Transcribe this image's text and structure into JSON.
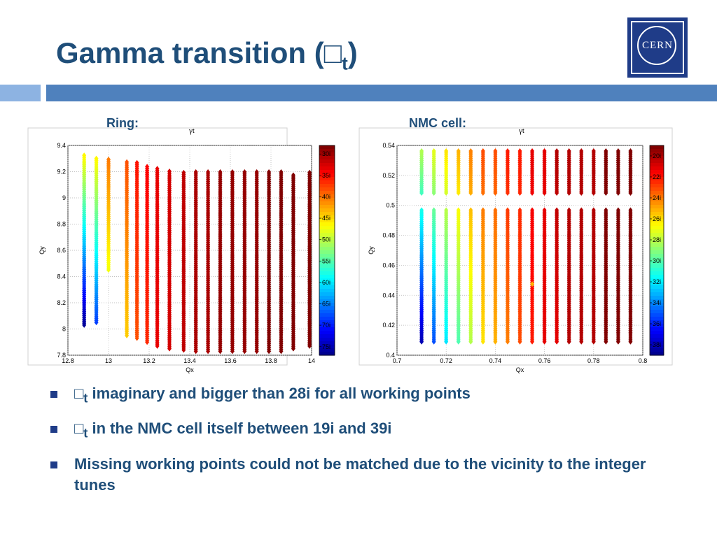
{
  "slide": {
    "title_main": "Gamma transition (",
    "title_symbol": "□",
    "title_sub": "t",
    "title_close": ")",
    "logo_text": "CERN"
  },
  "bullets": [
    {
      "symbol": "□",
      "sub": "t",
      "text": " imaginary and bigger than 28i for all working points"
    },
    {
      "symbol": "□",
      "sub": "t",
      "text": " in the NMC cell itself between 19i and 39i"
    },
    {
      "symbol": "",
      "sub": "",
      "text": "Missing working points could not be matched due to the vicinity to the integer tunes"
    }
  ],
  "chart_data": [
    {
      "type": "heatmap",
      "label": "Ring:",
      "title": "γt",
      "xlabel": "Qx",
      "ylabel": "Qy",
      "xlim": [
        12.8,
        14
      ],
      "ylim": [
        7.8,
        9.4
      ],
      "xticks": [
        12.8,
        13,
        13.2,
        13.4,
        13.6,
        13.8,
        14
      ],
      "xtick_labels": [
        "12.8",
        "13",
        "13.2",
        "13.4",
        "13.6",
        "13.8",
        "14"
      ],
      "yticks": [
        7.8,
        8,
        8.2,
        8.4,
        8.6,
        8.8,
        9,
        9.2,
        9.4
      ],
      "ytick_labels": [
        "7.8",
        "8",
        "8.2",
        "8.4",
        "8.6",
        "8.8",
        "9",
        "9.2",
        "9.4"
      ],
      "grid": true,
      "colorbar_ticks": [
        "30i",
        "35i",
        "40i",
        "45i",
        "50i",
        "55i",
        "60i",
        "65i",
        "70i",
        "75i"
      ],
      "colorbar_range": [
        28,
        77
      ],
      "colorbar_reversed": true,
      "columns": [
        {
          "x": 12.88,
          "ymin": 8.03,
          "ymax": 9.33,
          "v_bottom": 76,
          "v_top": 46
        },
        {
          "x": 12.94,
          "ymin": 8.05,
          "ymax": 9.31,
          "v_bottom": 68,
          "v_top": 46
        },
        {
          "x": 13.0,
          "ymin": 8.45,
          "ymax": 9.3,
          "v_bottom": 47,
          "v_top": 40
        },
        {
          "x": 13.09,
          "ymin": 7.95,
          "ymax": 9.28,
          "v_bottom": 44,
          "v_top": 38
        },
        {
          "x": 13.14,
          "ymin": 7.93,
          "ymax": 9.27,
          "v_bottom": 38,
          "v_top": 35
        },
        {
          "x": 13.19,
          "ymin": 7.9,
          "ymax": 9.25,
          "v_bottom": 36,
          "v_top": 34
        },
        {
          "x": 13.24,
          "ymin": 7.87,
          "ymax": 9.23,
          "v_bottom": 33,
          "v_top": 33
        },
        {
          "x": 13.3,
          "ymin": 7.85,
          "ymax": 9.21,
          "v_bottom": 32,
          "v_top": 32
        },
        {
          "x": 13.37,
          "ymin": 7.84,
          "ymax": 9.2,
          "v_bottom": 31,
          "v_top": 31
        },
        {
          "x": 13.43,
          "ymin": 7.83,
          "ymax": 9.2,
          "v_bottom": 30,
          "v_top": 30
        },
        {
          "x": 13.49,
          "ymin": 7.83,
          "ymax": 9.2,
          "v_bottom": 30,
          "v_top": 30
        },
        {
          "x": 13.55,
          "ymin": 7.83,
          "ymax": 9.2,
          "v_bottom": 29,
          "v_top": 29
        },
        {
          "x": 13.61,
          "ymin": 7.83,
          "ymax": 9.2,
          "v_bottom": 29,
          "v_top": 29
        },
        {
          "x": 13.67,
          "ymin": 7.83,
          "ymax": 9.2,
          "v_bottom": 29,
          "v_top": 29
        },
        {
          "x": 13.73,
          "ymin": 7.83,
          "ymax": 9.2,
          "v_bottom": 29,
          "v_top": 29
        },
        {
          "x": 13.79,
          "ymin": 7.83,
          "ymax": 9.2,
          "v_bottom": 28,
          "v_top": 28
        },
        {
          "x": 13.85,
          "ymin": 7.83,
          "ymax": 9.2,
          "v_bottom": 28,
          "v_top": 28
        },
        {
          "x": 13.91,
          "ymin": 7.85,
          "ymax": 9.18,
          "v_bottom": 28,
          "v_top": 28
        },
        {
          "x": 13.99,
          "ymin": 7.87,
          "ymax": 9.2,
          "v_bottom": 28,
          "v_top": 28
        }
      ]
    },
    {
      "type": "heatmap",
      "label": "NMC cell:",
      "title": "γt",
      "xlabel": "Qx",
      "ylabel": "Qy",
      "xlim": [
        0.7,
        0.8
      ],
      "ylim": [
        0.4,
        0.54
      ],
      "xticks": [
        0.7,
        0.72,
        0.74,
        0.76,
        0.78,
        0.8
      ],
      "xtick_labels": [
        "0.7",
        "0.72",
        "0.74",
        "0.76",
        "0.78",
        "0.8"
      ],
      "yticks": [
        0.4,
        0.42,
        0.44,
        0.46,
        0.48,
        0.5,
        0.52,
        0.54
      ],
      "ytick_labels": [
        "0.4",
        "0.42",
        "0.44",
        "0.46",
        "0.48",
        "0.5",
        "0.52",
        "0.54"
      ],
      "grid": true,
      "colorbar_ticks": [
        "20i",
        "22i",
        "24i",
        "26i",
        "28i",
        "30i",
        "32i",
        "34i",
        "36i",
        "38i"
      ],
      "colorbar_range": [
        19,
        39
      ],
      "colorbar_reversed": true,
      "gap": [
        0.497,
        0.508
      ],
      "columns": [
        {
          "x": 0.71,
          "ymin": 0.409,
          "ymax": 0.537,
          "v_bottom": 38,
          "v_top": 28
        },
        {
          "x": 0.715,
          "ymin": 0.409,
          "ymax": 0.537,
          "v_bottom": 35,
          "v_top": 27
        },
        {
          "x": 0.72,
          "ymin": 0.409,
          "ymax": 0.537,
          "v_bottom": 32,
          "v_top": 26
        },
        {
          "x": 0.725,
          "ymin": 0.409,
          "ymax": 0.537,
          "v_bottom": 30,
          "v_top": 25
        },
        {
          "x": 0.73,
          "ymin": 0.409,
          "ymax": 0.537,
          "v_bottom": 28,
          "v_top": 24
        },
        {
          "x": 0.735,
          "ymin": 0.409,
          "ymax": 0.537,
          "v_bottom": 26,
          "v_top": 23
        },
        {
          "x": 0.74,
          "ymin": 0.409,
          "ymax": 0.537,
          "v_bottom": 25,
          "v_top": 23
        },
        {
          "x": 0.745,
          "ymin": 0.409,
          "ymax": 0.537,
          "v_bottom": 24,
          "v_top": 22
        },
        {
          "x": 0.75,
          "ymin": 0.409,
          "ymax": 0.537,
          "v_bottom": 23,
          "v_top": 22
        },
        {
          "x": 0.755,
          "ymin": 0.409,
          "ymax": 0.537,
          "v_bottom": 22,
          "v_top": 21
        },
        {
          "x": 0.76,
          "ymin": 0.409,
          "ymax": 0.537,
          "v_bottom": 21,
          "v_top": 21
        },
        {
          "x": 0.765,
          "ymin": 0.409,
          "ymax": 0.537,
          "v_bottom": 21,
          "v_top": 20
        },
        {
          "x": 0.77,
          "ymin": 0.409,
          "ymax": 0.537,
          "v_bottom": 20,
          "v_top": 20
        },
        {
          "x": 0.775,
          "ymin": 0.409,
          "ymax": 0.537,
          "v_bottom": 20,
          "v_top": 20
        },
        {
          "x": 0.78,
          "ymin": 0.409,
          "ymax": 0.537,
          "v_bottom": 20,
          "v_top": 20
        },
        {
          "x": 0.785,
          "ymin": 0.409,
          "ymax": 0.537,
          "v_bottom": 19,
          "v_top": 19
        },
        {
          "x": 0.79,
          "ymin": 0.409,
          "ymax": 0.537,
          "v_bottom": 19,
          "v_top": 19
        },
        {
          "x": 0.795,
          "ymin": 0.409,
          "ymax": 0.537,
          "v_bottom": 19,
          "v_top": 19
        }
      ],
      "outliers": [
        {
          "x": 0.755,
          "y": 0.4475,
          "v": 25
        }
      ]
    }
  ]
}
